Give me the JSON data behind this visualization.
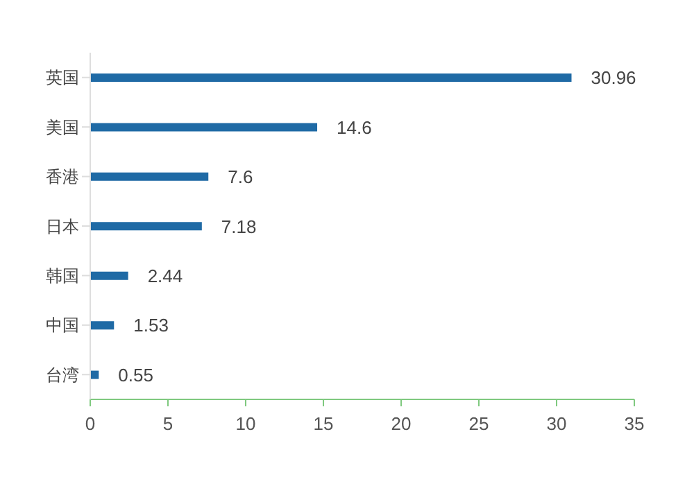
{
  "chart_data": {
    "type": "bar",
    "orientation": "horizontal",
    "categories": [
      "英国",
      "美国",
      "香港",
      "日本",
      "韩国",
      "中国",
      "台湾"
    ],
    "values": [
      30.96,
      14.6,
      7.6,
      7.18,
      2.44,
      1.53,
      0.55
    ],
    "color": "#1f6aa5",
    "xlim": [
      0,
      35
    ],
    "xticks": [
      0,
      5,
      10,
      15,
      20,
      25,
      30,
      35
    ],
    "grid": false,
    "data_labels": true
  }
}
